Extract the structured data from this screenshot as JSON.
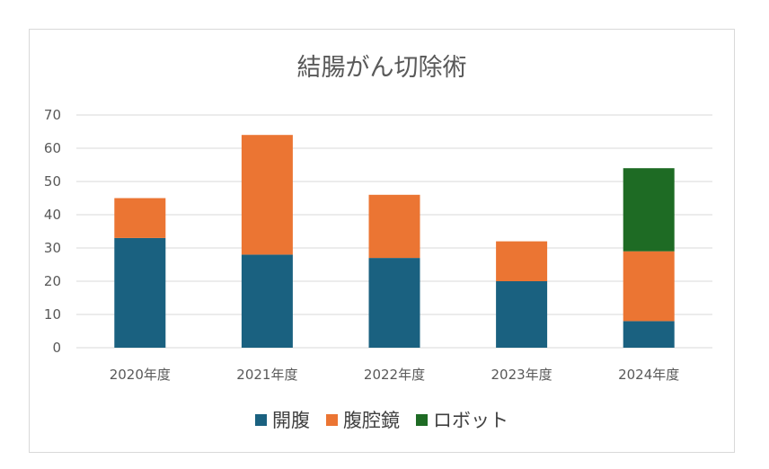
{
  "chart_data": {
    "type": "bar",
    "stacked": true,
    "title": "結腸がん切除術",
    "xlabel": "",
    "ylabel": "",
    "categories": [
      "2020年度",
      "2021年度",
      "2022年度",
      "2023年度",
      "2024年度"
    ],
    "series": [
      {
        "name": "開腹",
        "color": "#1a6180",
        "values": [
          33,
          28,
          27,
          20,
          8
        ]
      },
      {
        "name": "腹腔鏡",
        "color": "#eb7533",
        "values": [
          12,
          36,
          19,
          12,
          21
        ]
      },
      {
        "name": "ロボット",
        "color": "#1e6b24",
        "values": [
          0,
          0,
          0,
          0,
          25
        ]
      }
    ],
    "ylim": [
      0,
      70
    ],
    "yticks": [
      "0",
      "10",
      "20",
      "30",
      "40",
      "50",
      "60",
      "70"
    ],
    "grid": true,
    "legend_position": "bottom"
  }
}
